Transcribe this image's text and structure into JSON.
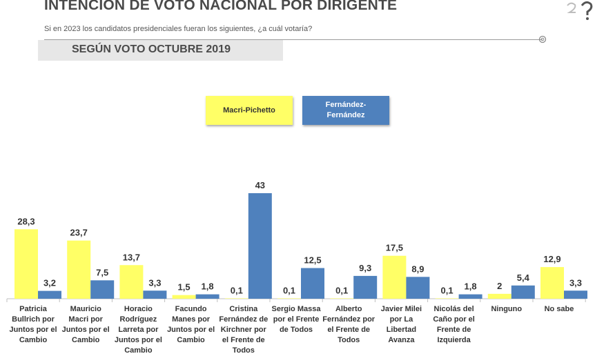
{
  "header": {
    "title": "INTENCIÓN DE VOTO NACIONAL POR DIRIGENTE",
    "subtitle": "Si en 2023 los candidatos presidenciales fueran los siguientes, ¿a cuál votaría?",
    "band_text": "SEGÚN VOTO OCTUBRE 2019"
  },
  "colors": {
    "series_a": "#ffff66",
    "series_b": "#4f81bd",
    "axis": "#bfbfbf"
  },
  "chart_data": {
    "type": "bar",
    "categories": [
      "Patricia Bullrich por Juntos por el Cambio",
      "Mauricio Macri por Juntos por el Cambio",
      "Horacio Rodríguez Larreta por Juntos por el Cambio",
      "Facundo Manes por Juntos por el Cambio",
      "Cristina Fernández de Kirchner por el Frente de Todos",
      "Sergio Massa por el Frente de Todos",
      "Alberto Fernández por el Frente de Todos",
      "Javier Milei por La Libertad Avanza",
      "Nicolás del Caño por el Frente de Izquierda",
      "Ninguno",
      "No sabe"
    ],
    "series": [
      {
        "name": "Macri-Pichetto",
        "values": [
          28.3,
          23.7,
          13.7,
          1.5,
          0.1,
          0.1,
          0.1,
          17.5,
          0.1,
          2,
          12.9
        ],
        "labels": [
          "28,3",
          "23,7",
          "13,7",
          "1,5",
          "0,1",
          "0,1",
          "0,1",
          "17,5",
          "0,1",
          "2",
          "12,9"
        ]
      },
      {
        "name": "Fernández-Fernández",
        "values": [
          3.2,
          7.5,
          3.3,
          1.8,
          43,
          12.5,
          9.3,
          8.9,
          1.8,
          5.4,
          3.3
        ],
        "labels": [
          "3,2",
          "7,5",
          "3,3",
          "1,8",
          "43",
          "12,5",
          "9,3",
          "8,9",
          "1,8",
          "5,4",
          "3,3"
        ]
      }
    ],
    "ylim": [
      0,
      43
    ],
    "legend": "top-center",
    "grid": false
  }
}
